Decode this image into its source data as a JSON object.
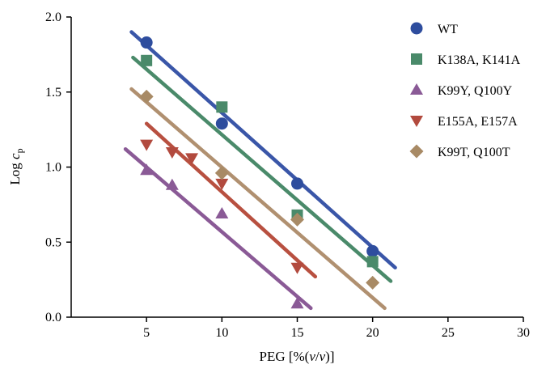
{
  "chart_data": {
    "type": "scatter",
    "xlabel_prefix": "PEG [%(",
    "xlabel_v1": "v",
    "xlabel_slash": "/",
    "xlabel_v2": "v",
    "xlabel_suffix": ")]",
    "ylabel_base": "Log ",
    "ylabel_c": "c",
    "ylabel_sub": "p",
    "xlim": [
      0,
      30
    ],
    "ylim": [
      0,
      2.0
    ],
    "x_ticks": [
      5,
      10,
      15,
      20,
      25,
      30
    ],
    "x_tick_labels": [
      "5",
      "10",
      "15",
      "20",
      "25",
      "30"
    ],
    "y_ticks": [
      0,
      0.5,
      1.0,
      1.5,
      2.0
    ],
    "y_tick_labels": [
      "0.0",
      "0.5",
      "1.0",
      "1.5",
      "2.0"
    ],
    "grid": false,
    "legend_position": "right",
    "series": [
      {
        "name": "WT",
        "marker": "circle",
        "color": "#2e4d9e",
        "line_color": "#3a56a8",
        "points": [
          [
            5,
            1.83
          ],
          [
            10,
            1.29
          ],
          [
            15,
            0.89
          ],
          [
            20,
            0.44
          ]
        ],
        "fit": [
          [
            4,
            1.9
          ],
          [
            21.5,
            0.33
          ]
        ]
      },
      {
        "name": "K138A, K141A",
        "marker": "square",
        "color": "#4a8a6a",
        "line_color": "#4a8a6a",
        "points": [
          [
            5,
            1.71
          ],
          [
            10,
            1.4
          ],
          [
            15,
            0.68
          ],
          [
            20,
            0.37
          ]
        ],
        "fit": [
          [
            4.1,
            1.73
          ],
          [
            21.2,
            0.24
          ]
        ]
      },
      {
        "name": "K99Y, Q100Y",
        "marker": "triangle-up",
        "color": "#8a5a96",
        "line_color": "#8a5a96",
        "points": [
          [
            5,
            0.98
          ],
          [
            6.7,
            0.88
          ],
          [
            10,
            0.69
          ],
          [
            15,
            0.09
          ]
        ],
        "fit": [
          [
            3.6,
            1.12
          ],
          [
            15.9,
            0.06
          ]
        ]
      },
      {
        "name": "E155A, E157A",
        "marker": "triangle-down",
        "color": "#b24a3e",
        "line_color": "#b85040",
        "points": [
          [
            5,
            1.15
          ],
          [
            6.7,
            1.1
          ],
          [
            8,
            1.06
          ],
          [
            10,
            0.89
          ],
          [
            15,
            0.33
          ]
        ],
        "fit": [
          [
            5,
            1.29
          ],
          [
            16.2,
            0.27
          ]
        ]
      },
      {
        "name": "K99T, Q100T",
        "marker": "diamond",
        "color": "#a88a65",
        "line_color": "#b09070",
        "points": [
          [
            5,
            1.47
          ],
          [
            10,
            0.96
          ],
          [
            15,
            0.65
          ],
          [
            20,
            0.23
          ]
        ],
        "fit": [
          [
            4,
            1.52
          ],
          [
            20.8,
            0.06
          ]
        ]
      }
    ]
  }
}
